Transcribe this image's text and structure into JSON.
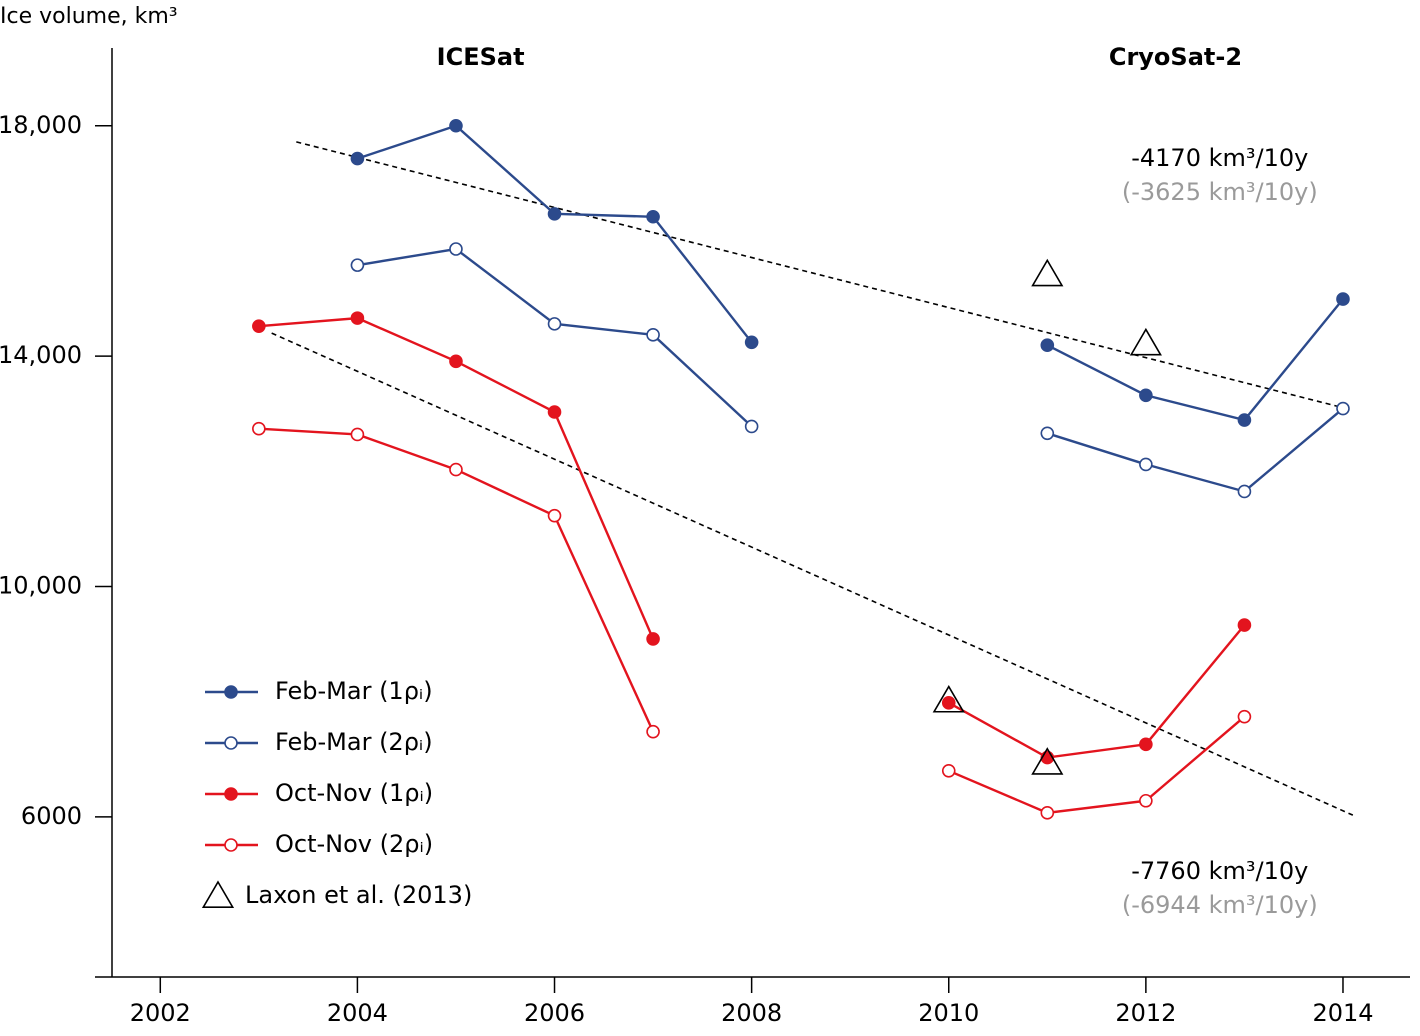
{
  "chart_data": {
    "type": "line",
    "y_label": "Ice volume, km³",
    "x": [
      2003,
      2004,
      2005,
      2006,
      2007,
      2008,
      2009,
      2010,
      2011,
      2012,
      2013,
      2014
    ],
    "xlim": [
      2001.51,
      2014.68
    ],
    "xticks": [
      2002,
      2004,
      2006,
      2008,
      2010,
      2012,
      2014
    ],
    "ylim": [
      3220,
      19350
    ],
    "yticks": [
      6000,
      {
        "value": 10000,
        "label": "10,000"
      },
      {
        "value": 14000,
        "label": "14,000"
      },
      {
        "value": 18000,
        "label": "18,000"
      }
    ],
    "series": [
      {
        "name": "Feb-Mar (1ρᵢ)",
        "color": "#2c4a8c",
        "marker": "filled-circle",
        "values": [
          null,
          17430,
          18000,
          16470,
          16420,
          14240,
          null,
          null,
          14190,
          13320,
          12890,
          14990
        ]
      },
      {
        "name": "Feb-Mar (2ρᵢ)",
        "color": "#2c4a8c",
        "marker": "open-circle",
        "values": [
          null,
          15580,
          15860,
          14560,
          14370,
          12780,
          null,
          null,
          12660,
          12120,
          11650,
          13090
        ]
      },
      {
        "name": "Oct-Nov (1ρᵢ)",
        "color": "#e3141e",
        "marker": "filled-circle",
        "values": [
          14520,
          14660,
          13910,
          13030,
          9090,
          null,
          null,
          7980,
          7030,
          7260,
          9330,
          null
        ]
      },
      {
        "name": "Oct-Nov (2ρᵢ)",
        "color": "#e3141e",
        "marker": "open-circle",
        "values": [
          12740,
          12640,
          12030,
          11230,
          7480,
          null,
          null,
          6800,
          6070,
          6280,
          7740,
          null
        ]
      },
      {
        "name": "Laxon et al. (2013)",
        "color": "#000000",
        "marker": "triangle",
        "x": [
          2010,
          2011,
          2011,
          2012
        ],
        "values": [
          8020,
          15420,
          6940,
          14220
        ]
      }
    ],
    "trend_lines": [
      {
        "x": [
          2003.38,
          2014.08
        ],
        "values": [
          17720,
          13070
        ],
        "color": "#000000"
      },
      {
        "x": [
          2003.13,
          2014.1
        ],
        "values": [
          14400,
          6030
        ],
        "color": "#000000"
      }
    ],
    "annotations": [
      {
        "text": "ICESat",
        "x": 2005.25,
        "y": 19180
      },
      {
        "text": "CryoSat-2",
        "x": 2012.3,
        "y": 19180
      },
      {
        "text": "-4170 km³/10y",
        "x": 2012.75,
        "y": 17420,
        "color": "#000000"
      },
      {
        "text": "(-3625 km³/10y)",
        "x": 2012.75,
        "y": 16830,
        "color": "#9a9a9a"
      },
      {
        "text": "-7760 km³/10y",
        "x": 2012.75,
        "y": 5040,
        "color": "#000000"
      },
      {
        "text": "(-6944 km³/10y)",
        "x": 2012.75,
        "y": 4450,
        "color": "#9a9a9a"
      }
    ]
  }
}
